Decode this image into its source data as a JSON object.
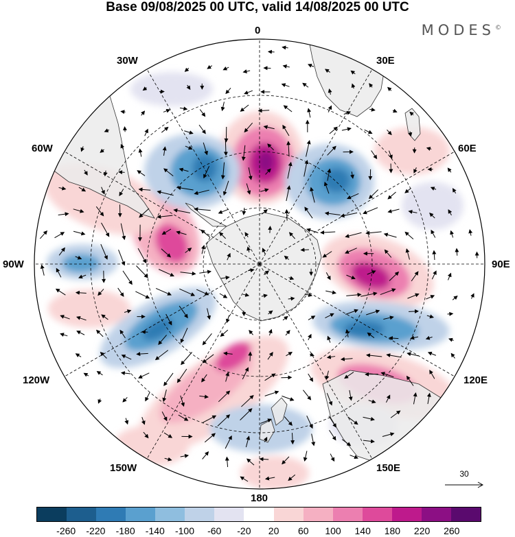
{
  "title": "Base 09/08/2025 00 UTC, valid 14/08/2025 00 UTC",
  "brand": "MODES",
  "brand_mark": "©",
  "map": {
    "projection": "south polar stereographic",
    "longitude_labels": [
      "0",
      "30E",
      "60E",
      "90E",
      "120E",
      "150E",
      "180",
      "150W",
      "120W",
      "90W",
      "60W",
      "30W"
    ]
  },
  "reference_vector": {
    "value": "30"
  },
  "colorbar": {
    "colors": [
      "#0b3d5e",
      "#1d5e8e",
      "#2f7bb4",
      "#5aa0cf",
      "#8fbedf",
      "#bfd2e8",
      "#e3e3f1",
      "#ffffff",
      "#f9d6d6",
      "#f5b0c2",
      "#ec7fb0",
      "#de4a9b",
      "#be1a8c",
      "#8c0f84",
      "#5a0a6e"
    ],
    "labels": [
      "-260",
      "-220",
      "-180",
      "-140",
      "-100",
      "-60",
      "-20",
      "20",
      "60",
      "100",
      "140",
      "180",
      "220",
      "260"
    ]
  },
  "colors": {
    "land": "#ebebeb",
    "coast": "#333333",
    "grid": "#000000"
  }
}
